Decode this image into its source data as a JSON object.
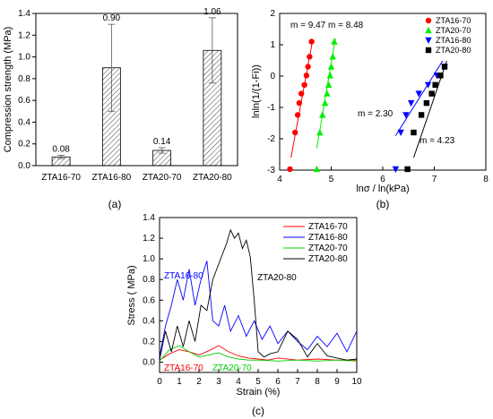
{
  "chart_data": [
    {
      "panel": "(a)",
      "type": "bar",
      "ylabel": "Compression strength (MPa)",
      "xlabel": "",
      "ylim": [
        0,
        1.4
      ],
      "yticks": [
        "0.0",
        "0.2",
        "0.4",
        "0.6",
        "0.8",
        "1.0",
        "1.2",
        "1.4"
      ],
      "categories": [
        "ZTA16-70",
        "ZTA16-80",
        "ZTA20-70",
        "ZTA20-80"
      ],
      "values": [
        0.08,
        0.9,
        0.14,
        1.06
      ],
      "value_labels": [
        "0.08",
        "0.90",
        "0.14",
        "1.06"
      ],
      "errors": [
        0.015,
        0.4,
        0.025,
        0.3
      ],
      "bar_fill": "hatched"
    },
    {
      "panel": "(b)",
      "type": "scatter",
      "xlabel": "lnσ / ln(kPa)",
      "ylabel": "lnln(1/(1-Fi))",
      "xlim": [
        4,
        8
      ],
      "ylim": [
        -3,
        2
      ],
      "xticks": [
        "4",
        "5",
        "6",
        "7",
        "8"
      ],
      "yticks": [
        "-3",
        "-2",
        "-1",
        "0",
        "1",
        "2"
      ],
      "legend_position": "top-right",
      "annotations": [
        "m = 9.47",
        "m = 8.48",
        "m = 2.30",
        "m = 4.23"
      ],
      "series": [
        {
          "name": "ZTA16-70",
          "color": "#ff0000",
          "marker": "circle",
          "x": [
            4.2,
            4.3,
            4.35,
            4.38,
            4.42,
            4.48,
            4.52,
            4.55,
            4.58,
            4.62
          ],
          "y": [
            -2.97,
            -1.8,
            -1.24,
            -0.86,
            -0.56,
            -0.28,
            0.02,
            0.3,
            0.62,
            1.1
          ],
          "fit": [
            [
              4.22,
              -2.6
            ],
            [
              4.64,
              1.15
            ]
          ]
        },
        {
          "name": "ZTA20-70",
          "color": "#00ee00",
          "marker": "triangle-up",
          "x": [
            4.72,
            4.78,
            4.83,
            4.88,
            4.92,
            4.95,
            4.98,
            5.0,
            5.03,
            5.06
          ],
          "y": [
            -2.97,
            -1.8,
            -1.24,
            -0.86,
            -0.56,
            -0.28,
            0.02,
            0.3,
            0.62,
            1.1
          ],
          "fit": [
            [
              4.72,
              -2.3
            ],
            [
              5.08,
              1.2
            ]
          ]
        },
        {
          "name": "ZTA16-80",
          "color": "#0000ff",
          "marker": "triangle-down",
          "x": [
            6.25,
            6.35,
            6.45,
            6.55,
            6.7,
            6.88,
            7.05,
            7.2,
            7.4,
            7.58
          ],
          "y": [
            -2.97,
            -1.8,
            -1.24,
            -0.86,
            -0.56,
            -0.28,
            0.02,
            0.3,
            0.62,
            1.1
          ],
          "fit": [
            [
              6.25,
              -1.9
            ],
            [
              7.55,
              1.5
            ]
          ]
        },
        {
          "name": "ZTA20-80",
          "color": "#000000",
          "marker": "square",
          "x": [
            6.48,
            6.6,
            6.75,
            6.85,
            6.95,
            7.02,
            7.12,
            7.2,
            7.32,
            7.45
          ],
          "y": [
            -2.97,
            -1.8,
            -1.24,
            -0.86,
            -0.56,
            -0.28,
            0.02,
            0.3,
            0.62,
            1.1
          ],
          "fit": [
            [
              6.6,
              -2.6
            ],
            [
              7.4,
              1.25
            ]
          ]
        }
      ]
    },
    {
      "panel": "(c)",
      "type": "line",
      "xlabel": "Strain (%)",
      "ylabel": "Stress ( MPa)",
      "xlim": [
        0,
        10
      ],
      "ylim": [
        -0.1,
        1.4
      ],
      "xticks": [
        "0",
        "1",
        "2",
        "3",
        "4",
        "5",
        "6",
        "7",
        "8",
        "9",
        "10"
      ],
      "yticks": [
        "0.0",
        "0.2",
        "0.4",
        "0.6",
        "0.8",
        "1.0",
        "1.2",
        "1.4"
      ],
      "legend_position": "top-right",
      "annotations": [
        "ZTA16-80",
        "ZTA20-80",
        "ZTA16-70",
        "ZTA20-70"
      ],
      "series": [
        {
          "name": "ZTA16-70",
          "color": "#ff0000",
          "x": [
            0,
            0.5,
            1.0,
            1.5,
            2.0,
            2.5,
            3.0,
            3.5,
            4.0,
            4.5,
            5.0,
            5.5,
            6.0,
            7.0,
            8.0,
            9.0,
            10.0
          ],
          "y": [
            0.02,
            0.08,
            0.12,
            0.1,
            0.07,
            0.11,
            0.16,
            0.1,
            0.06,
            0.04,
            0.03,
            0.02,
            0.04,
            0.02,
            0.03,
            0.02,
            0.02
          ]
        },
        {
          "name": "ZTA16-80",
          "color": "#0000ff",
          "x": [
            0,
            0.3,
            0.6,
            0.9,
            1.2,
            1.5,
            1.8,
            2.1,
            2.4,
            2.7,
            3.0,
            3.3,
            3.6,
            4.0,
            4.4,
            4.8,
            5.2,
            5.6,
            6.0,
            6.5,
            7.0,
            7.5,
            8.0,
            8.5,
            9.0,
            9.5,
            10.0
          ],
          "y": [
            0.05,
            0.35,
            0.55,
            0.8,
            0.6,
            0.9,
            0.55,
            0.8,
            0.98,
            0.4,
            0.35,
            0.55,
            0.3,
            0.45,
            0.25,
            0.4,
            0.22,
            0.35,
            0.18,
            0.3,
            0.2,
            0.12,
            0.25,
            0.15,
            0.28,
            0.1,
            0.3
          ]
        },
        {
          "name": "ZTA20-70",
          "color": "#00cc00",
          "x": [
            0,
            0.5,
            1.0,
            1.5,
            2.0,
            2.5,
            3.0,
            3.5,
            4.0,
            4.5,
            5.0,
            6.0,
            7.0,
            8.0,
            9.0,
            10.0
          ],
          "y": [
            0.01,
            0.12,
            0.16,
            0.1,
            0.05,
            0.07,
            0.09,
            0.05,
            0.03,
            0.02,
            0.02,
            0.01,
            0.02,
            0.01,
            0.02,
            0.01
          ]
        },
        {
          "name": "ZTA20-80",
          "color": "#000000",
          "x": [
            0,
            0.3,
            0.6,
            0.9,
            1.2,
            1.5,
            1.8,
            2.1,
            2.4,
            2.7,
            3.0,
            3.2,
            3.4,
            3.6,
            3.8,
            4.0,
            4.2,
            4.4,
            4.6,
            4.8,
            5.0,
            5.3,
            5.6,
            6.0,
            6.5,
            7.0,
            7.5,
            8.0,
            8.5,
            9.0,
            9.5,
            10.0
          ],
          "y": [
            0.02,
            0.3,
            0.1,
            0.35,
            0.15,
            0.4,
            0.2,
            0.55,
            0.5,
            0.8,
            0.95,
            1.05,
            1.15,
            1.28,
            1.2,
            1.25,
            1.1,
            1.18,
            1.02,
            0.6,
            0.1,
            0.05,
            0.08,
            0.1,
            0.3,
            0.22,
            0.05,
            0.18,
            0.06,
            0.04,
            0.02,
            0.03
          ]
        }
      ]
    }
  ]
}
